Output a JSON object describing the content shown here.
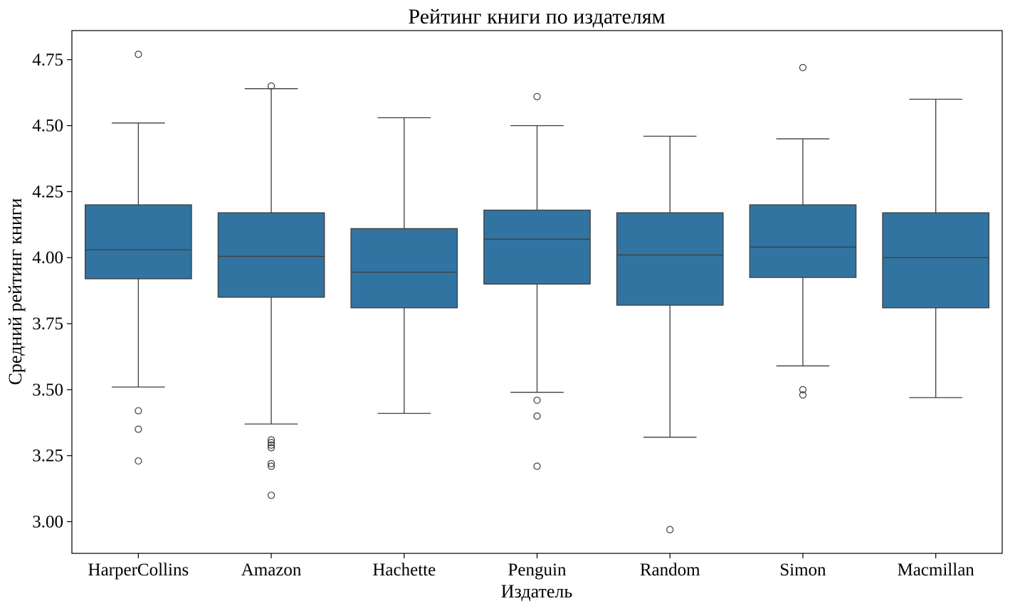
{
  "chart_data": {
    "type": "box",
    "title": "Рейтинг книги по издателям",
    "xlabel": "Издатель",
    "ylabel": "Средний рейтинг книги",
    "ylim": [
      2.88,
      4.86
    ],
    "yticks": [
      "3.00",
      "3.25",
      "3.50",
      "3.75",
      "4.00",
      "4.25",
      "4.50",
      "4.75"
    ],
    "box_color": "#3274a1",
    "line_color": "#3d3d3d",
    "categories": [
      "HarperCollins",
      "Amazon",
      "Hachette",
      "Penguin",
      "Random",
      "Simon",
      "Macmillan"
    ],
    "boxes": [
      {
        "whisker_low": 3.51,
        "q1": 3.92,
        "median": 4.03,
        "q3": 4.2,
        "whisker_high": 4.51,
        "outliers": [
          4.77,
          3.42,
          3.35,
          3.23
        ]
      },
      {
        "whisker_low": 3.37,
        "q1": 3.85,
        "median": 4.005,
        "q3": 4.17,
        "whisker_high": 4.64,
        "outliers": [
          4.65,
          3.31,
          3.3,
          3.29,
          3.28,
          3.22,
          3.21,
          3.1
        ]
      },
      {
        "whisker_low": 3.41,
        "q1": 3.81,
        "median": 3.945,
        "q3": 4.11,
        "whisker_high": 4.53,
        "outliers": []
      },
      {
        "whisker_low": 3.49,
        "q1": 3.9,
        "median": 4.07,
        "q3": 4.18,
        "whisker_high": 4.5,
        "outliers": [
          4.61,
          3.46,
          3.4,
          3.21
        ]
      },
      {
        "whisker_low": 3.32,
        "q1": 3.82,
        "median": 4.01,
        "q3": 4.17,
        "whisker_high": 4.46,
        "outliers": [
          2.97
        ]
      },
      {
        "whisker_low": 3.59,
        "q1": 3.925,
        "median": 4.04,
        "q3": 4.2,
        "whisker_high": 4.45,
        "outliers": [
          4.72,
          3.5,
          3.48
        ]
      },
      {
        "whisker_low": 3.47,
        "q1": 3.81,
        "median": 4.0,
        "q3": 4.17,
        "whisker_high": 4.6,
        "outliers": []
      }
    ]
  }
}
